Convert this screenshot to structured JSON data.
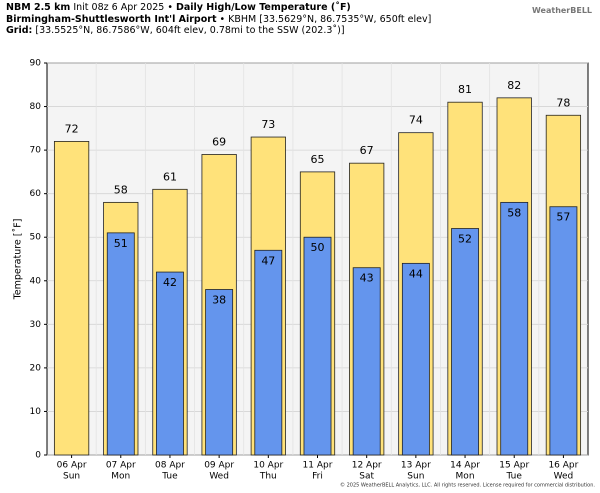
{
  "header": {
    "model": "NBM 2.5 km",
    "init": "Init 08z 6 Apr 2025 •",
    "product": "Daily High/Low Temperature (˚F)",
    "station": "Birmingham-Shuttlesworth Int'l Airport",
    "station_info": "• KBHM [33.5629°N, 86.7535°W, 650ft elev]",
    "grid_label": "Grid:",
    "grid_info": "[33.5525°N, 86.7586°W, 604ft elev, 0.78mi to the SSW (202.3˚)]",
    "logo": "WeatherBELL"
  },
  "footer": "© 2025 WeatherBELL Analytics, LLC. All rights reserved. License required for commercial distribution.",
  "chart_data": {
    "type": "bar",
    "y_label": "Temperature [˚F]",
    "categories": [
      "06 Apr",
      "07 Apr",
      "08 Apr",
      "09 Apr",
      "10 Apr",
      "11 Apr",
      "12 Apr",
      "13 Apr",
      "14 Apr",
      "15 Apr",
      "16 Apr"
    ],
    "weekdays": [
      "Sun",
      "Mon",
      "Tue",
      "Wed",
      "Thu",
      "Fri",
      "Sat",
      "Sun",
      "Mon",
      "Tue",
      "Wed"
    ],
    "series": [
      {
        "color": "#ffe27a",
        "values": [
          72,
          58,
          61,
          69,
          73,
          65,
          67,
          74,
          81,
          82,
          78
        ]
      },
      {
        "color": "#6495ed",
        "values": [
          null,
          51,
          42,
          38,
          47,
          50,
          43,
          44,
          52,
          58,
          57
        ]
      }
    ],
    "ylim": [
      0,
      90
    ],
    "yticks": [
      0,
      10,
      20,
      30,
      40,
      50,
      60,
      70,
      80,
      90
    ],
    "grid": true
  }
}
